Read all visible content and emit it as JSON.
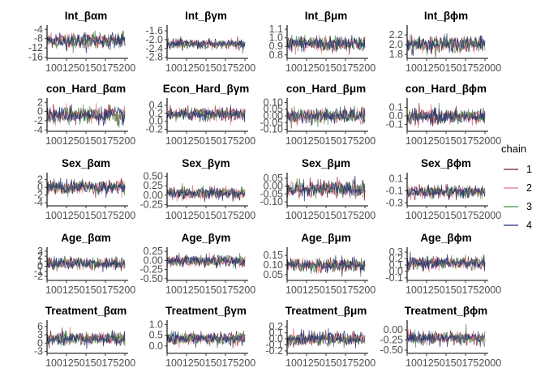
{
  "chart_data": {
    "type": "line",
    "legend": {
      "title": "chain",
      "placement": "right",
      "entries": [
        {
          "label": "1",
          "color": "#6b1f2a"
        },
        {
          "label": "2",
          "color": "#e8727f"
        },
        {
          "label": "3",
          "color": "#4c8a4c"
        },
        {
          "label": "4",
          "color": "#1f2f7a"
        }
      ]
    },
    "x_tick_text": "1001250150175200",
    "x_tick_text_last": "10012501501752000",
    "x_range": [
      1001,
      2000
    ],
    "grid": false,
    "panels": [
      {
        "title": "Int_βαm",
        "ylim": [
          -16.5,
          -3.2
        ],
        "yticks": [
          "-4",
          "-8",
          "-12",
          "-16"
        ],
        "ytick_values": [
          -4,
          -8,
          -12,
          -16
        ],
        "mean": -8.8,
        "sd": 1.6
      },
      {
        "title": "Int_βγm",
        "ylim": [
          -2.85,
          -1.45
        ],
        "yticks": [
          "-1.6",
          "-2.0",
          "-2.4",
          "-2.8"
        ],
        "ytick_values": [
          -1.6,
          -2.0,
          -2.4,
          -2.8
        ],
        "mean": -2.2,
        "sd": 0.11
      },
      {
        "title": "Int_βμm",
        "ylim": [
          0.76,
          1.12
        ],
        "yticks": [
          "1.1",
          "1.0",
          "0.9",
          "0.8"
        ],
        "ytick_values": [
          1.1,
          1.0,
          0.9,
          0.8
        ],
        "mean": 0.93,
        "sd": 0.045
      },
      {
        "title": "Int_βϕm",
        "ylim": [
          1.72,
          2.35
        ],
        "yticks": [
          "2.2",
          "2.0",
          "1.8"
        ],
        "ytick_values": [
          2.2,
          2.0,
          1.8
        ],
        "mean": 2.01,
        "sd": 0.08
      },
      {
        "title": "con_Hard_βαm",
        "ylim": [
          -4.3,
          2.4
        ],
        "yticks": [
          "2",
          "0",
          "-2",
          "-4"
        ],
        "ytick_values": [
          2,
          0,
          -2,
          -4
        ],
        "mean": -0.8,
        "sd": 0.9
      },
      {
        "title": "Econ_Hard_βγm",
        "ylim": [
          -0.25,
          0.52
        ],
        "yticks": [
          "0.4",
          "0.2",
          "0.0",
          "-0.2"
        ],
        "ytick_values": [
          0.4,
          0.2,
          0.0,
          -0.2
        ],
        "mean": 0.18,
        "sd": 0.08
      },
      {
        "title": "con_Hard_βμm",
        "ylim": [
          -0.115,
          0.115
        ],
        "yticks": [
          "0.10",
          "0.05",
          "0.00",
          "-0.05",
          "-0.10"
        ],
        "ytick_values": [
          0.1,
          0.05,
          0.0,
          -0.05,
          -0.1
        ],
        "mean": 0.0,
        "sd": 0.028
      },
      {
        "title": "con_Hard_βϕm",
        "ylim": [
          -0.18,
          0.18
        ],
        "yticks": [
          "0.1",
          "0.0",
          "-0.1"
        ],
        "ytick_values": [
          0.1,
          0.0,
          -0.1
        ],
        "mean": -0.01,
        "sd": 0.045
      },
      {
        "title": "Sex_βαm",
        "ylim": [
          -4.8,
          3.2
        ],
        "yticks": [
          "2",
          "0",
          "-2",
          "-4"
        ],
        "ytick_values": [
          2,
          0,
          -2,
          -4
        ],
        "mean": 0.1,
        "sd": 0.9
      },
      {
        "title": "Sex_βγm",
        "ylim": [
          -0.28,
          0.53
        ],
        "yticks": [
          "0.50",
          "0.25",
          "0.00",
          "-0.25"
        ],
        "ytick_values": [
          0.5,
          0.25,
          0.0,
          -0.25
        ],
        "mean": 0.05,
        "sd": 0.08
      },
      {
        "title": "Sex_βμm",
        "ylim": [
          -0.125,
          0.07
        ],
        "yticks": [
          "0.05",
          "0.00",
          "-0.05",
          "-0.10"
        ],
        "ytick_values": [
          0.05,
          0.0,
          -0.05,
          -0.1
        ],
        "mean": -0.02,
        "sd": 0.025
      },
      {
        "title": "Sex_βϕm",
        "ylim": [
          -0.35,
          0.16
        ],
        "yticks": [
          "0.1",
          "-0.1",
          "-0.3"
        ],
        "ytick_values": [
          0.1,
          -0.1,
          -0.3
        ],
        "mean": -0.12,
        "sd": 0.05
      },
      {
        "title": "Age_βαm",
        "ylim": [
          -2.8,
          3.3
        ],
        "yticks": [
          "3",
          "2",
          "1",
          "0",
          "-1",
          "-2"
        ],
        "ytick_values": [
          3,
          2,
          1,
          0,
          -1,
          -2
        ],
        "mean": 0.6,
        "sd": 0.6
      },
      {
        "title": "Age_βγm",
        "ylim": [
          -0.55,
          0.3
        ],
        "yticks": [
          "0.25",
          "0.00",
          "-0.25",
          "-0.50"
        ],
        "ytick_values": [
          0.25,
          0.0,
          -0.25,
          -0.5
        ],
        "mean": -0.02,
        "sd": 0.08
      },
      {
        "title": "Age_βμm",
        "ylim": [
          0.02,
          0.18
        ],
        "yticks": [
          "0.15",
          "0.10",
          "0.05"
        ],
        "ytick_values": [
          0.15,
          0.1,
          0.05
        ],
        "mean": 0.1,
        "sd": 0.018
      },
      {
        "title": "Age_βϕm",
        "ylim": [
          -0.14,
          0.34
        ],
        "yticks": [
          "0.3",
          "0.2",
          "0.1",
          "0.0",
          "-0.1"
        ],
        "ytick_values": [
          0.3,
          0.2,
          0.1,
          0.0,
          -0.1
        ],
        "mean": 0.13,
        "sd": 0.05
      },
      {
        "title": "Treatment_βαm",
        "ylim": [
          -3.7,
          7.4
        ],
        "yticks": [
          "6",
          "3",
          "0",
          "-3"
        ],
        "ytick_values": [
          6,
          3,
          0,
          -3
        ],
        "mean": 1.6,
        "sd": 1.2
      },
      {
        "title": "Treatment_βγm",
        "ylim": [
          -0.35,
          1.1
        ],
        "yticks": [
          "1.0",
          "0.5",
          "0.0"
        ],
        "ytick_values": [
          1.0,
          0.5,
          0.0
        ],
        "mean": 0.35,
        "sd": 0.15
      },
      {
        "title": "Treatment_βμm",
        "ylim": [
          -0.24,
          0.27
        ],
        "yticks": [
          "0.2",
          "0.1",
          "0.0",
          "-0.1",
          "-0.2"
        ],
        "ytick_values": [
          0.2,
          0.1,
          0.0,
          -0.1,
          -0.2
        ],
        "mean": 0.0,
        "sd": 0.055
      },
      {
        "title": "Treatment_βϕm",
        "ylim": [
          -0.58,
          0.18
        ],
        "yticks": [
          "0.00",
          "-0.25",
          "-0.50"
        ],
        "ytick_values": [
          0.0,
          -0.25,
          -0.5
        ],
        "mean": -0.2,
        "sd": 0.08
      }
    ]
  }
}
